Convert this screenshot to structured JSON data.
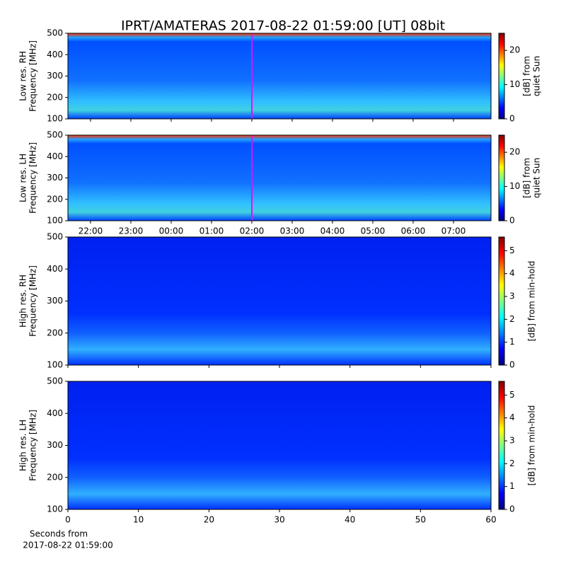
{
  "title": "IPRT/AMATERAS 2017-08-22 01:59:00 [UT]   08bit",
  "chart_data": [
    {
      "type": "heatmap",
      "ylabel": [
        "Low res. RH",
        "Frequency [MHz]"
      ],
      "ylim": [
        100,
        500
      ],
      "yticks": [
        100,
        200,
        300,
        400,
        500
      ],
      "xlim": [
        21.44,
        31.93
      ],
      "show_xticklabels": false,
      "xticks": [
        {
          "value": 22,
          "label": "22:00"
        },
        {
          "value": 23,
          "label": "23:00"
        },
        {
          "value": 24,
          "label": "00:00"
        },
        {
          "value": 25,
          "label": "01:00"
        },
        {
          "value": 26,
          "label": "02:00"
        },
        {
          "value": 27,
          "label": "03:00"
        },
        {
          "value": 28,
          "label": "04:00"
        },
        {
          "value": 29,
          "label": "05:00"
        },
        {
          "value": 30,
          "label": "06:00"
        },
        {
          "value": 31,
          "label": "07:00"
        }
      ],
      "clim": [
        0,
        25
      ],
      "cticks": [
        0,
        10,
        20
      ],
      "clabel": [
        "[dB] from",
        "quiet Sun"
      ],
      "colormap": "jet"
    },
    {
      "type": "heatmap",
      "ylabel": [
        "Low res. LH",
        "Frequency [MHz]"
      ],
      "ylim": [
        100,
        500
      ],
      "yticks": [
        100,
        200,
        300,
        400,
        500
      ],
      "xlim": [
        21.44,
        31.93
      ],
      "show_xticklabels": true,
      "xticks": [
        {
          "value": 22,
          "label": "22:00"
        },
        {
          "value": 23,
          "label": "23:00"
        },
        {
          "value": 24,
          "label": "00:00"
        },
        {
          "value": 25,
          "label": "01:00"
        },
        {
          "value": 26,
          "label": "02:00"
        },
        {
          "value": 27,
          "label": "03:00"
        },
        {
          "value": 28,
          "label": "04:00"
        },
        {
          "value": 29,
          "label": "05:00"
        },
        {
          "value": 30,
          "label": "06:00"
        },
        {
          "value": 31,
          "label": "07:00"
        }
      ],
      "clim": [
        0,
        25
      ],
      "cticks": [
        0,
        10,
        20
      ],
      "clabel": [
        "[dB] from",
        "quiet Sun"
      ],
      "colormap": "jet"
    },
    {
      "type": "heatmap",
      "ylabel": [
        "High res. RH",
        "Frequency [MHz]"
      ],
      "ylim": [
        100,
        500
      ],
      "yticks": [
        100,
        200,
        300,
        400,
        500
      ],
      "xlim": [
        0,
        60
      ],
      "xticks": [
        0,
        10,
        20,
        30,
        40,
        50,
        60
      ],
      "show_xticklabels": false,
      "clim": [
        0,
        5.6
      ],
      "cticks": [
        0,
        1,
        2,
        3,
        4,
        5
      ],
      "clabel": [
        "[dB] from min-hold"
      ],
      "colormap": "jet"
    },
    {
      "type": "heatmap",
      "ylabel": [
        "High res. LH",
        "Frequency [MHz]"
      ],
      "ylim": [
        100,
        500
      ],
      "yticks": [
        100,
        200,
        300,
        400,
        500
      ],
      "xlim": [
        0,
        60
      ],
      "xticks": [
        0,
        10,
        20,
        30,
        40,
        50,
        60
      ],
      "show_xticklabels": true,
      "xlabel": [
        "Seconds from",
        "2017-08-22 01:59:00"
      ],
      "clim": [
        0,
        5.6
      ],
      "cticks": [
        0,
        1,
        2,
        3,
        4,
        5
      ],
      "clabel": [
        "[dB] from min-hold"
      ],
      "colormap": "jet"
    }
  ]
}
